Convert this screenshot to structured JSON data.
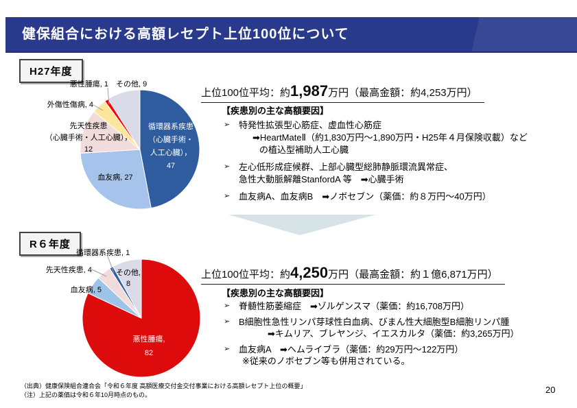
{
  "page": {
    "title": "健保組合における高額レセプト上位100位について",
    "page_number": "20",
    "source_note": "（出典）健康保険組合連合会「令和６年度 高額医療交付金交付事業における高額レセプト上位の概要」",
    "remark_note": "（注）上記の薬価は令和６年10月時点のもの。"
  },
  "ui": {
    "bullet_glyph": "➢"
  },
  "colors": {
    "title_bar_bg": "#293a8d",
    "title_text": "#ffffff",
    "year_badge_bg": "#f4f4f4",
    "year_badge_border": "#404040",
    "arrow_fill": "#d6e4e8",
    "leader_line": "#9f9f9f"
  },
  "sections": {
    "h27": {
      "year_label": "H27年度",
      "headline": {
        "prefix": "上位100位平均：約",
        "big": "1,987",
        "suffix": "万円（最高金額：約4,253万円）"
      },
      "factors_title": "【疾患別の主な高額要因】",
      "bullets": [
        {
          "l1": "特発性拡張型心筋症、虚血性心筋症",
          "l2": "➡HeartMateⅡ（約1,830万円～1,890万円・H25年４月保険収載）など",
          "l3": "の植込型補助人工心臓"
        },
        {
          "l1": "左心低形成症候群、上部心臓型総肺静脈環流異常症、",
          "l2": "急性大動脈解離StanfordA 等　➡心臓手術"
        },
        {
          "l1": "血友病A、血友病B　➡ノボセブン（薬価：約８万円～40万円）"
        }
      ]
    },
    "r6": {
      "year_label": "R６年度",
      "headline": {
        "prefix": "上位100位平均：約",
        "big": "4,250",
        "suffix": "万円（最高金額：約１億6,871万円）"
      },
      "factors_title": "【疾患別の主な高額要因】",
      "bullets": [
        {
          "l1": "脊髄性筋萎縮症　➡ゾルゲンスマ（薬価：約16,708万円）"
        },
        {
          "l1": "B細胞性急性リンパ芽球性白血病、びまん性大細胞型B細胞リンパ腫",
          "l2": "➡キムリア、ブレヤンジ、イエスカルタ（薬価：約3,265万円）"
        },
        {
          "l1": "血友病A　➡ヘムライブラ（薬価：約29万円～122万円）",
          "l2": "※従来のノボセブン等も併用されている。"
        }
      ]
    }
  },
  "chart_data": [
    {
      "type": "pie",
      "title": "H27年度",
      "categories": [
        "循環器系疾患（心臓手術・人工心臓）",
        "血友病",
        "先天性疾患（心臓手術・人工心臓）",
        "外傷性傷病",
        "悪性腫瘍",
        "その他"
      ],
      "values": [
        47,
        27,
        12,
        4,
        1,
        9
      ],
      "colors": [
        "#2e5c9e",
        "#a6c3ec",
        "#f2dcdb",
        "#fbe69c",
        "#ff0000",
        "#d9dbe9"
      ],
      "start_angle": 0,
      "direction": "clockwise",
      "legend_position": "none",
      "callouts": {
        "main_l1": "循環器系疾患",
        "main_l2": "（心臓手術・",
        "main_l3": "人工心臓），",
        "main_l4": "47",
        "hemophilia": "血友病, 27",
        "congenital_l1": "先天性疾患",
        "congenital_l2": "（心臓手術・人工心臓），",
        "congenital_l3": "12",
        "trauma": "外傷性傷病, 4",
        "malignant": "悪性腫瘍, 1",
        "other": "その他, 9"
      }
    },
    {
      "type": "pie",
      "title": "R６年度",
      "categories": [
        "悪性腫瘍",
        "血友病",
        "先天性疾患",
        "循環器系疾患",
        "その他"
      ],
      "values": [
        82,
        5,
        4,
        1,
        8
      ],
      "colors": [
        "#dd0b0b",
        "#9dc3e6",
        "#f2dcdb",
        "#2e5c9e",
        "#d9dbe9"
      ],
      "start_angle": 0,
      "direction": "clockwise",
      "legend_position": "none",
      "callouts": {
        "circulatory": "循環器系疾患, 1",
        "congenital": "先天性疾患, 4",
        "hemophilia": "血友病, 5",
        "other_l1": "その他,",
        "other_l2": "8",
        "malignant_l1": "悪性腫瘍,",
        "malignant_l2": "82"
      }
    }
  ]
}
